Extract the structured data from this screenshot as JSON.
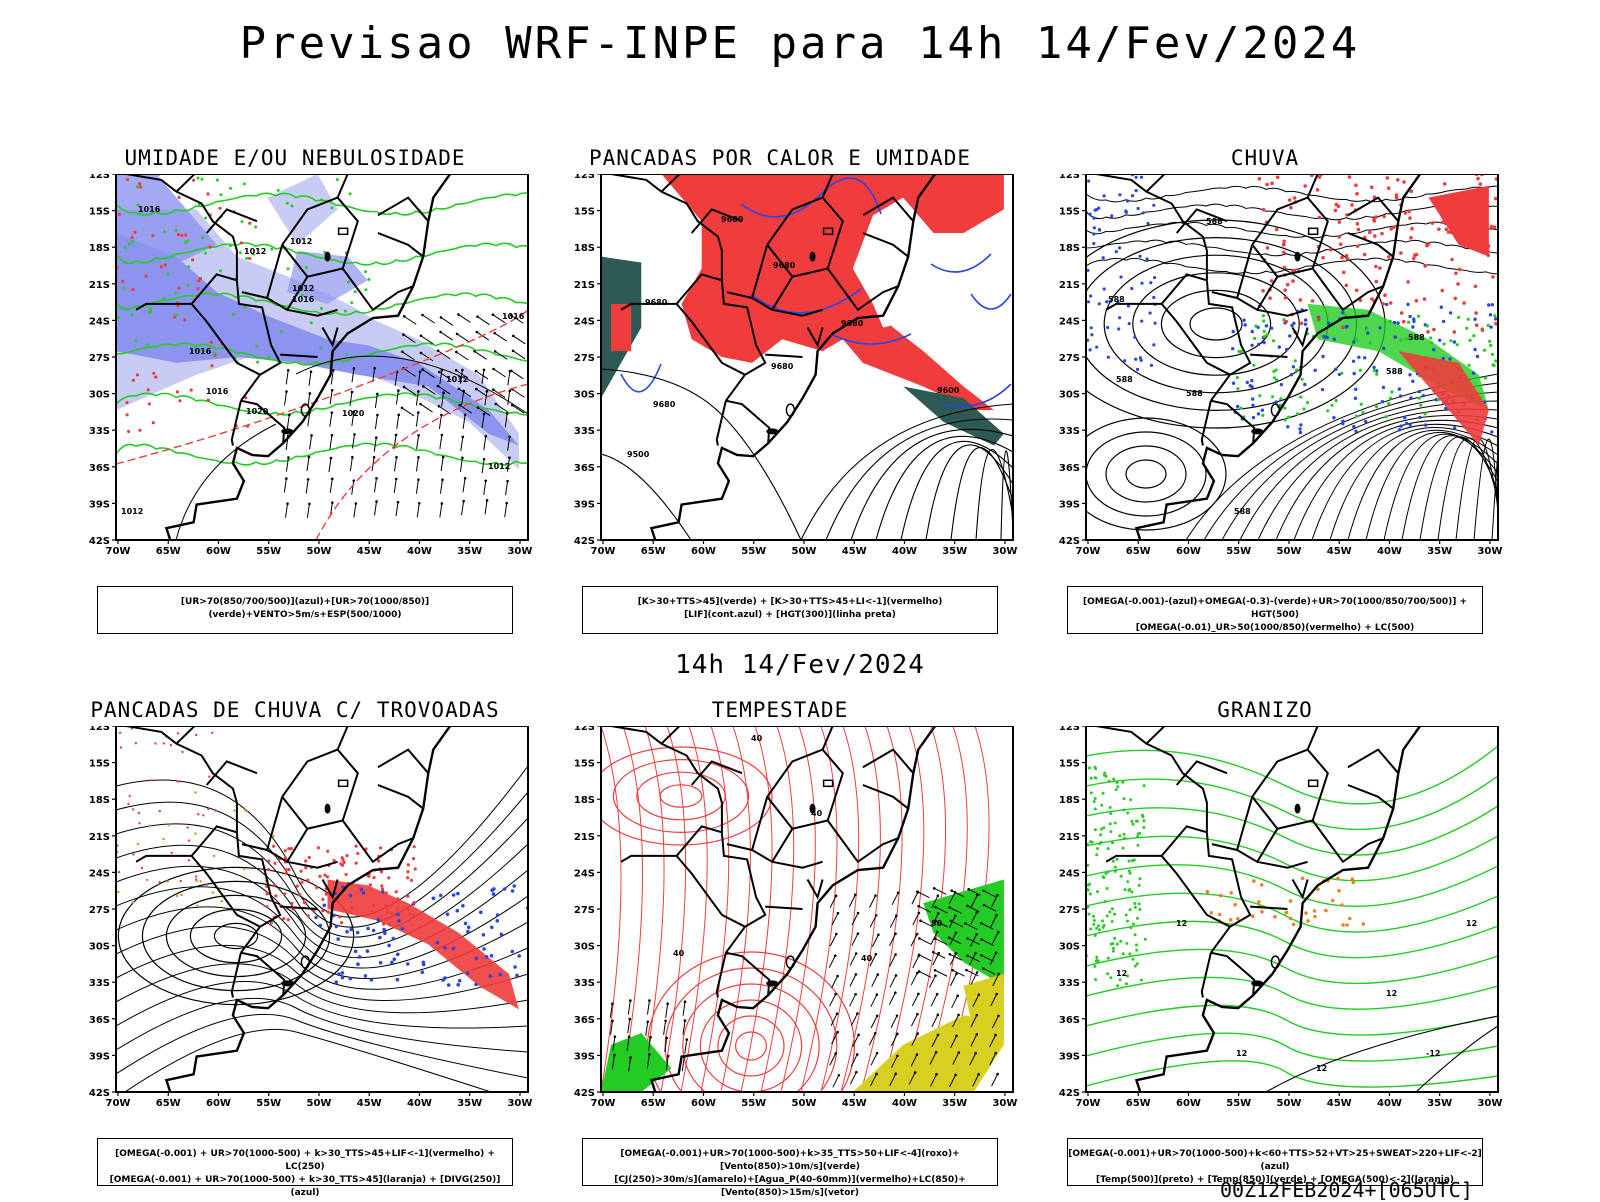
{
  "title": "Previsao WRF-INPE  para 14h 14/Fev/2024",
  "mid_title": "14h 14/Fev/2024",
  "footer": "00Z12FEB2024+[065UTC]",
  "axes": {
    "lat_ticks": [
      "12S",
      "15S",
      "18S",
      "21S",
      "24S",
      "27S",
      "30S",
      "33S",
      "36S",
      "39S",
      "42S"
    ],
    "lon_ticks": [
      "70W",
      "65W",
      "60W",
      "55W",
      "50W",
      "45W",
      "40W",
      "35W",
      "30W"
    ]
  },
  "colors": {
    "blue_humidity": "#8c94f0",
    "light_blue": "#c8ccf5",
    "green": "#22cc22",
    "red": "#f03c3c",
    "dark_teal": "#2d5a55",
    "yellow": "#d8d020",
    "blue_line": "#2846e6",
    "orange": "#f08020"
  },
  "panels": [
    {
      "id": "umidade",
      "title": "UMIDADE E/OU NEBULOSIDADE",
      "caption_lines": [
        "[UR>70(850/700/500)](azul)+[UR>70(1000/850)](verde)+VENTO>5m/s+ESP(500/1000)"
      ],
      "labels": [
        "1016",
        "1012",
        "1012",
        "1012",
        "1016",
        "1016",
        "1020",
        "1020",
        "1016",
        "1012",
        "1016",
        "1012",
        "1012"
      ]
    },
    {
      "id": "pancadas-calor",
      "title": "PANCADAS POR CALOR E UMIDADE",
      "caption_lines": [
        "[K>30+TTS>45](verde) + [K>30+TTS>45+LI<-1](vermelho)",
        "[LIF](cont.azul) + [HGT(300)](linha preta)"
      ],
      "labels": [
        "9680",
        "9680",
        "9680",
        "9680",
        "9680",
        "9600",
        "9500",
        "9680"
      ]
    },
    {
      "id": "chuva",
      "title": "CHUVA",
      "caption_lines": [
        "[OMEGA(-0.001)-(azul)+OMEGA(-0.3)-(verde)+UR>70(1000/850/700/500)] + HGT(500)",
        "[OMEGA(-0.01)_UR>50(1000/850)(vermelho) + LC(500)"
      ],
      "labels": [
        "588",
        "588",
        "588",
        "588",
        "588",
        "588",
        "588"
      ]
    },
    {
      "id": "trovoadas",
      "title": "PANCADAS DE CHUVA C/ TROVOADAS",
      "caption_lines": [
        "[OMEGA(-0.001) + UR>70(1000-500) + k>30_TTS>45+LIF<-1](vermelho) + LC(250)",
        "[OMEGA(-0.001) + UR>70(1000-500) + k>30_TTS>45](laranja) + [DIVG(250)](azul)"
      ],
      "labels": []
    },
    {
      "id": "tempestade",
      "title": "TEMPESTADE",
      "caption_lines": [
        "[OMEGA(-0.001)+UR>70(1000-500)+k>35_TTS>50+LIF<-4](roxo)+[Vento(850)>10m/s](verde)",
        "[CJ(250)>30m/s](amarelo)+[Agua_P(40-60mm)](vermelho)+LC(850)+[Vento(850)>15m/s](vetor)"
      ],
      "labels": [
        "40",
        "40",
        "40",
        "50",
        "40"
      ]
    },
    {
      "id": "granizo",
      "title": "GRANIZO",
      "caption_lines": [
        "[OMEGA(-0.001)+UR>70(1000-500)+k<60+TTS>52+VT>25+SWEAT>220+LIF<-2](azul)",
        "[Temp(500)](preto) + [Temp(850)](verde) + [OMEGA(500)<-2](laranja)"
      ],
      "labels": [
        "12",
        "12",
        "12",
        "12",
        "-12",
        "12",
        "12"
      ]
    }
  ]
}
